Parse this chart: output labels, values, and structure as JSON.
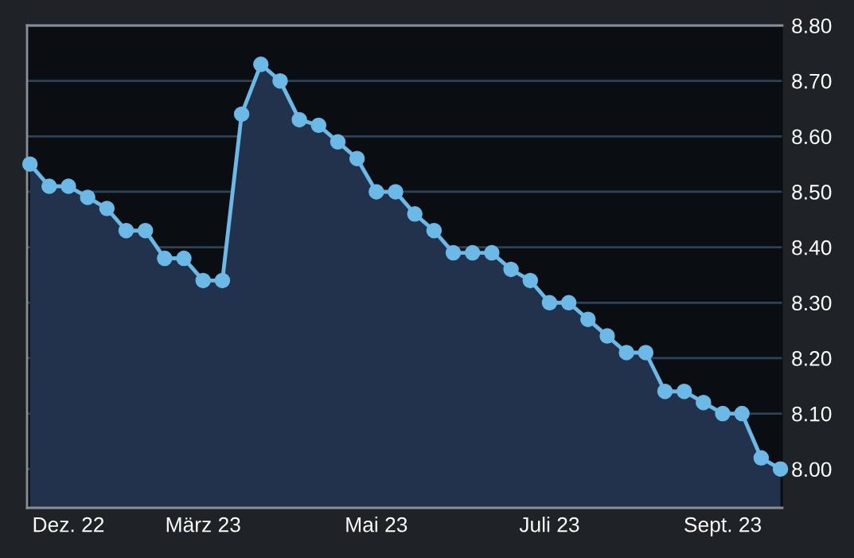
{
  "chart_data": {
    "type": "area",
    "categories": [
      null,
      null,
      "Dez. 22",
      null,
      null,
      null,
      null,
      null,
      null,
      "März 23",
      null,
      null,
      null,
      null,
      null,
      null,
      null,
      null,
      "Mai 23",
      null,
      null,
      null,
      null,
      null,
      null,
      null,
      null,
      "Juli 23",
      null,
      null,
      null,
      null,
      null,
      null,
      null,
      null,
      "Sept. 23",
      null,
      null,
      null
    ],
    "series": [
      {
        "color": "#6cb8e6",
        "values": [
          8.55,
          8.51,
          8.51,
          8.49,
          8.47,
          8.43,
          8.43,
          8.38,
          8.38,
          8.34,
          8.34,
          8.64,
          8.73,
          8.7,
          8.63,
          8.62,
          8.59,
          8.56,
          8.5,
          8.5,
          8.46,
          8.43,
          8.39,
          8.39,
          8.39,
          8.36,
          8.34,
          8.3,
          8.3,
          8.27,
          8.24,
          8.21,
          8.21,
          8.14,
          8.14,
          8.12,
          8.1,
          8.1,
          8.02,
          8.0
        ]
      }
    ],
    "ylim": [
      7.93,
      8.8
    ],
    "yticks": [
      {
        "value": 8.0,
        "label": "8.00"
      },
      {
        "value": 8.1,
        "label": "8.10"
      },
      {
        "value": 8.2,
        "label": "8.20"
      },
      {
        "value": 8.3,
        "label": "8.30"
      },
      {
        "value": 8.4,
        "label": "8.40"
      },
      {
        "value": 8.5,
        "label": "8.50"
      },
      {
        "value": 8.6,
        "label": "8.60"
      },
      {
        "value": 8.7,
        "label": "8.70"
      },
      {
        "value": 8.8,
        "label": "8.80"
      }
    ],
    "grid": "y",
    "marker": "circle",
    "line_style": "solid",
    "legend": false
  }
}
